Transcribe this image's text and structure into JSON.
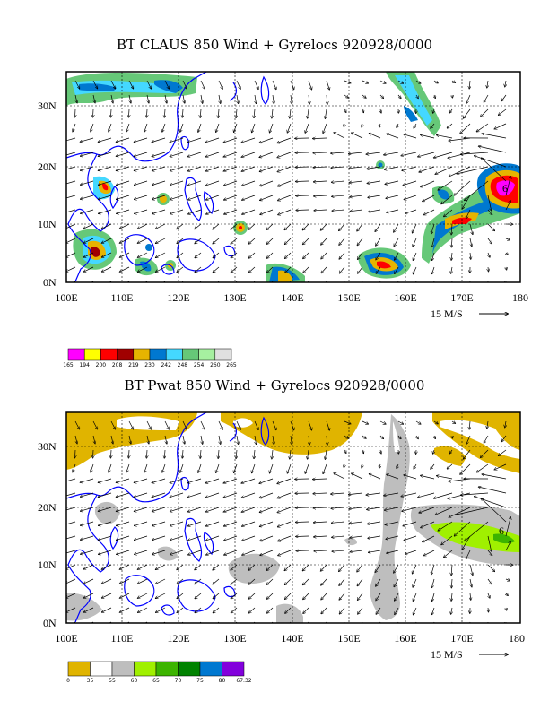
{
  "panels": [
    {
      "id": "claus",
      "title": "BT CLAUS 850 Wind + Gyrelocs 920928/0000",
      "lon_labels": [
        "100E",
        "110E",
        "120E",
        "130E",
        "140E",
        "150E",
        "160E",
        "170E",
        "180"
      ],
      "lat_labels": [
        "30N",
        "20N",
        "10N",
        "0N"
      ],
      "ref_vector": "15 M/S",
      "storm_marker": "6",
      "colorbar_labels": [
        "165",
        "194",
        "200",
        "208",
        "219",
        "230",
        "242",
        "248",
        "254",
        "260",
        "265"
      ],
      "colorbar_colors": [
        "#ff00ff",
        "#ffff00",
        "#ff0000",
        "#a00000",
        "#e6b400",
        "#0078d0",
        "#44d8ff",
        "#66c878",
        "#a6f0a0",
        "#e0e0e0"
      ]
    },
    {
      "id": "pwat",
      "title": "BT Pwat 850 Wind + Gyrelocs 920928/0000",
      "lon_labels": [
        "100E",
        "110E",
        "120E",
        "130E",
        "140E",
        "150E",
        "160E",
        "170E",
        "180"
      ],
      "lat_labels": [
        "30N",
        "20N",
        "10N",
        "0N"
      ],
      "ref_vector": "15 M/S",
      "storm_marker": "6",
      "colorbar_labels": [
        "0",
        "35",
        "55",
        "60",
        "65",
        "70",
        "75",
        "80",
        "67.32"
      ],
      "colorbar_colors": [
        "#e0b400",
        "#ffffff",
        "#bebebe",
        "#a0f000",
        "#3cb400",
        "#008200",
        "#0078d0",
        "#8200dc"
      ]
    }
  ],
  "colors": {
    "coast": "#0000ff",
    "ocean": "#ffffff",
    "grid": "#000000"
  }
}
